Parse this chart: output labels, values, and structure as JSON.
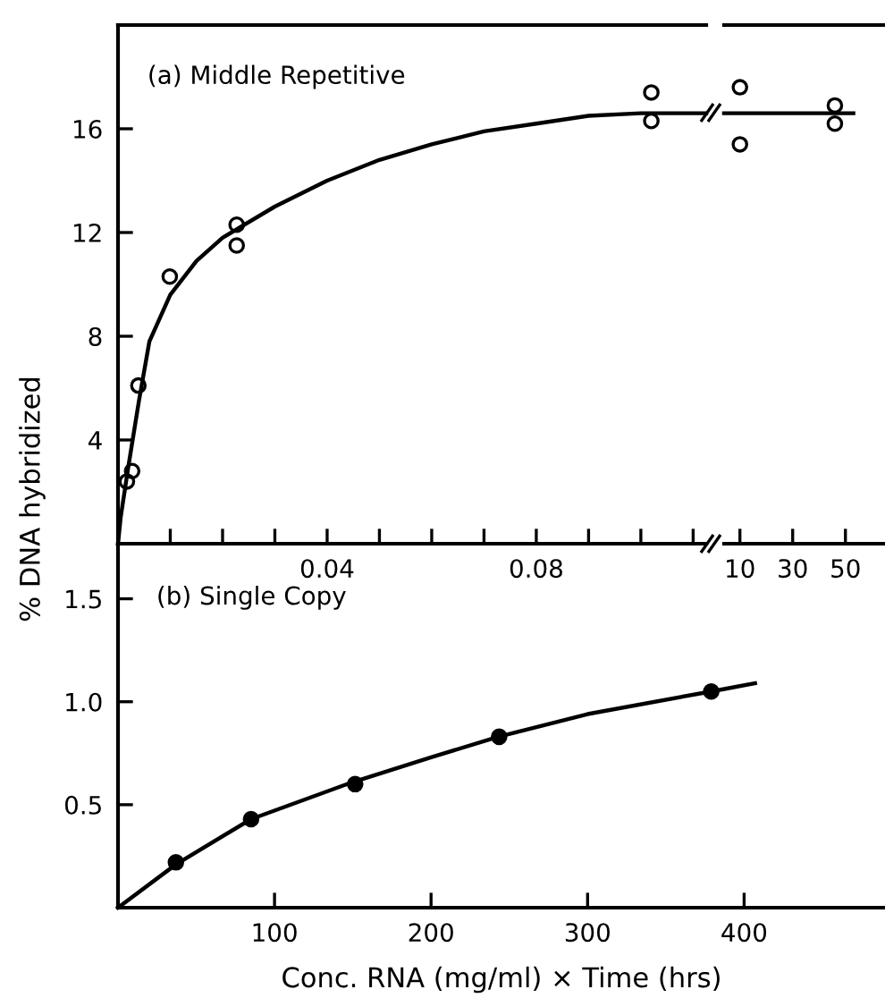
{
  "chart_data": [
    {
      "type": "scatter",
      "title": "(a) Middle Repetitive",
      "ylabel": "% DNA hybridized",
      "xlim": [
        0,
        0.1125
      ],
      "ylim": [
        0,
        20
      ],
      "xticks": [
        {
          "value": 0.01,
          "label": null
        },
        {
          "value": 0.02,
          "label": null
        },
        {
          "value": 0.03,
          "label": null
        },
        0.04,
        {
          "value": 0.05,
          "label": null
        },
        {
          "value": 0.06,
          "label": null
        },
        {
          "value": 0.07,
          "label": null
        },
        0.08,
        {
          "value": 0.09,
          "label": null
        },
        {
          "value": 0.1,
          "label": null
        },
        {
          "value": 0.11,
          "label": null
        }
      ],
      "yticks": [
        4,
        8,
        12,
        16
      ],
      "grid": false,
      "legend": false,
      "marker": "circle",
      "series": [
        {
          "color": "#000000",
          "x": [
            0.0017,
            0.0027,
            0.0039,
            0.0099,
            0.0227,
            0.0227,
            0.102,
            0.102
          ],
          "values": [
            2.4,
            2.8,
            6.1,
            10.3,
            12.3,
            11.5,
            17.4,
            16.3
          ]
        },
        {
          "type": "line",
          "color": "#000000",
          "marker": "none",
          "x": [
            0,
            0.0005,
            0.002,
            0.004,
            0.006,
            0.01,
            0.015,
            0.02,
            0.03,
            0.04,
            0.05,
            0.06,
            0.07,
            0.08,
            0.09,
            0.1,
            0.1125
          ],
          "values": [
            0,
            1,
            3,
            5.5,
            7.8,
            9.6,
            10.9,
            11.8,
            13,
            14,
            14.8,
            15.4,
            15.9,
            16.2,
            16.5,
            16.6,
            16.6
          ]
        }
      ]
    },
    {
      "type": "scatter",
      "xlim": [
        4,
        65
      ],
      "ylim": [
        0,
        20
      ],
      "xticks": [
        10,
        30,
        50
      ],
      "tick_labels": "x",
      "grid": false,
      "legend": false,
      "marker": "circle",
      "series": [
        {
          "color": "#000000",
          "x": [
            10,
            10,
            46,
            46
          ],
          "values": [
            17.6,
            15.4,
            16.9,
            16.2
          ]
        },
        {
          "type": "line",
          "color": "#000000",
          "marker": "none",
          "x": [
            4,
            53
          ],
          "values": [
            16.6,
            16.6
          ]
        }
      ]
    },
    {
      "type": "scatter",
      "title": "(b) Single Copy",
      "xlabel": "Conc. RNA (mg/ml) × Time (hrs)",
      "xlim": [
        0,
        490
      ],
      "ylim": [
        0,
        1.75
      ],
      "xticks": [
        100,
        200,
        300,
        400
      ],
      "yticks": [
        {
          "value": 0.5,
          "label": "0.5"
        },
        {
          "value": 1.0,
          "label": "1.0"
        },
        {
          "value": 1.5,
          "label": "1.5"
        }
      ],
      "grid": false,
      "legend": false,
      "marker": "circle",
      "series": [
        {
          "color": "#000000",
          "x": [
            37,
            85,
            151.5,
            243.5,
            379
          ],
          "values": [
            0.22,
            0.43,
            0.6,
            0.83,
            1.05
          ]
        },
        {
          "type": "line",
          "color": "#000000",
          "marker": "none",
          "x": [
            0,
            37,
            85,
            150,
            200,
            243,
            300,
            379,
            407
          ],
          "values": [
            0,
            0.21,
            0.43,
            0.61,
            0.73,
            0.83,
            0.94,
            1.05,
            1.09
          ]
        }
      ]
    }
  ]
}
